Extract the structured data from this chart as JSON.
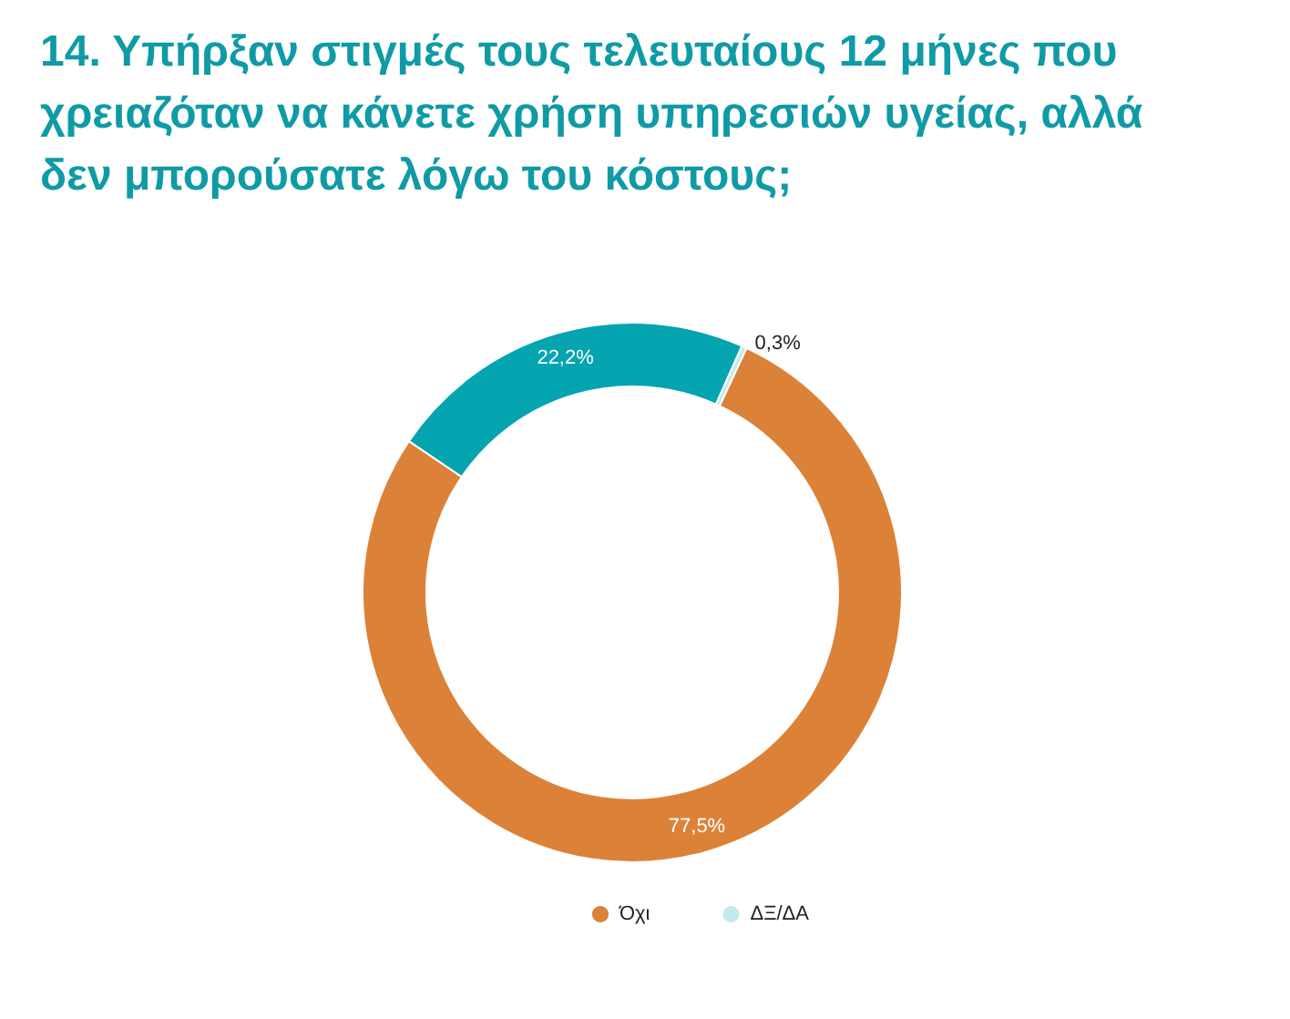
{
  "chart_data": {
    "type": "donut",
    "title": "14. Υπήρξαν στιγμές τους τελευταίους 12 μήνες που χρειαζόταν να κάνετε χρήση υπηρεσιών υγείας, αλλά δεν μπορούσατε λόγω του κόστους;",
    "categories": [
      null,
      "Όχι",
      "ΔΞ/ΔΑ"
    ],
    "values": [
      22.2,
      77.5,
      0.3
    ],
    "value_labels": [
      "22,2%",
      "77,5%",
      "0,3%"
    ],
    "colors": [
      "#04a4b0",
      "#dc8238",
      "#c5e8ec"
    ],
    "legend": "bottom"
  }
}
